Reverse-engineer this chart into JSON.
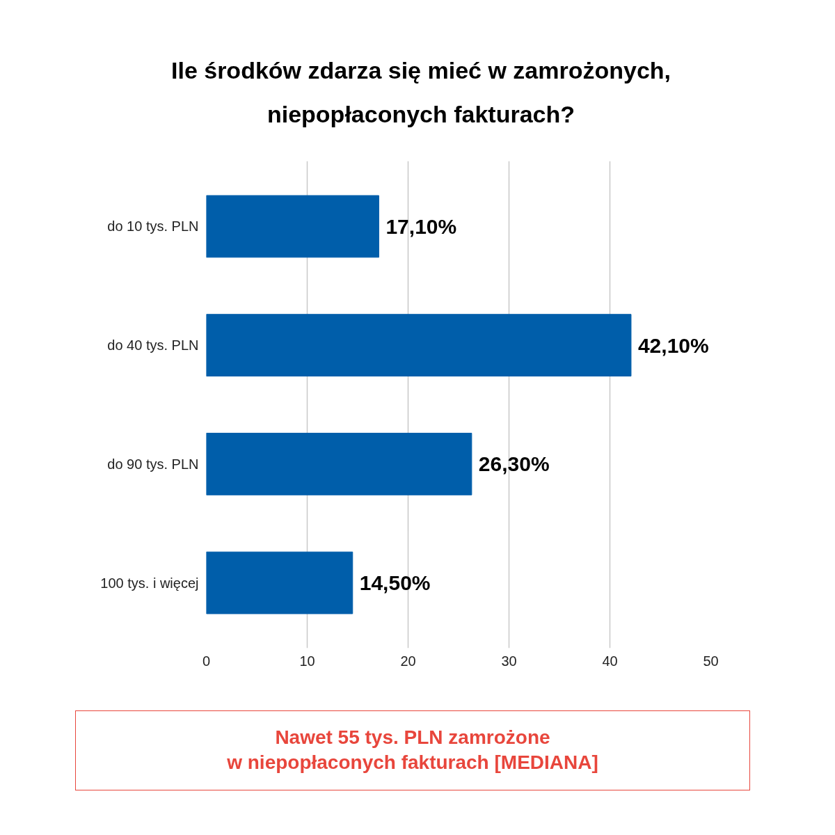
{
  "chart_data": {
    "type": "bar",
    "orientation": "horizontal",
    "title": "Ile środków zdarza się mieć w zamrożonych,\nniepopłaconych fakturach?",
    "categories": [
      "do 10 tys. PLN",
      "do 40 tys. PLN",
      "do 90 tys. PLN",
      "100 tys. i więcej"
    ],
    "values": [
      17.1,
      42.1,
      26.3,
      14.5
    ],
    "color": "#005eaa",
    "value_labels": [
      "17,10%",
      "42,10%",
      "26,30%",
      "14,50%"
    ],
    "xlim": [
      0,
      50
    ],
    "xticks": [
      0,
      10,
      20,
      30,
      40,
      50
    ],
    "grid": "x",
    "annotations": [
      "Nawet 55 tys. PLN zamrożone\nw niepopłaconych fakturach [MEDIANA]"
    ]
  }
}
